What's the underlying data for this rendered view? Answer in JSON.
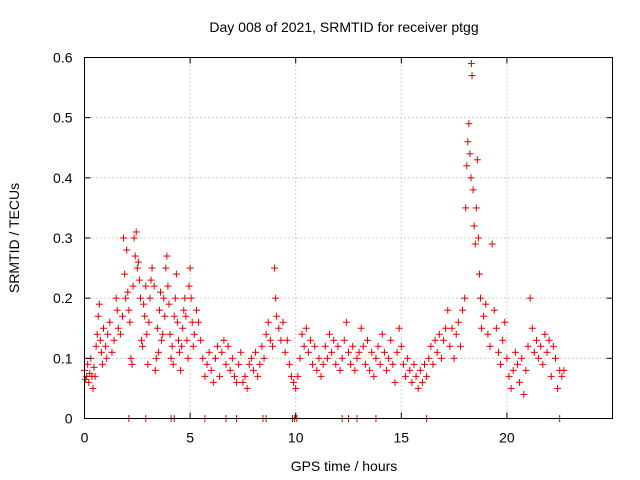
{
  "chart_data": {
    "type": "scatter",
    "title": "Day 008 of 2021, SRMTID for receiver ptgg",
    "xlabel": "GPS time / hours",
    "ylabel": "SRMTID / TECUs",
    "xlim": [
      0,
      25
    ],
    "ylim": [
      0,
      0.6
    ],
    "xticks": [
      "0",
      "5",
      "10",
      "15",
      "20"
    ],
    "yticks": [
      "0",
      "0.1",
      "0.2",
      "0.3",
      "0.4",
      "0.5",
      "0.6"
    ],
    "grid": true,
    "marker": "+",
    "color": "#e00000",
    "series": [
      {
        "name": "SRMTID",
        "points": [
          [
            0.0,
            0.08
          ],
          [
            0.05,
            0.065
          ],
          [
            0.1,
            0.07
          ],
          [
            0.15,
            0.09
          ],
          [
            0.2,
            0.06
          ],
          [
            0.25,
            0.075
          ],
          [
            0.3,
            0.1
          ],
          [
            0.35,
            0.07
          ],
          [
            0.4,
            0.05
          ],
          [
            0.45,
            0.085
          ],
          [
            0.5,
            0.07
          ],
          [
            0.55,
            0.12
          ],
          [
            0.6,
            0.14
          ],
          [
            0.65,
            0.17
          ],
          [
            0.7,
            0.19
          ],
          [
            0.75,
            0.13
          ],
          [
            0.8,
            0.11
          ],
          [
            0.85,
            0.09
          ],
          [
            0.9,
            0.15
          ],
          [
            1.0,
            0.12
          ],
          [
            1.05,
            0.1
          ],
          [
            1.1,
            0.14
          ],
          [
            1.2,
            0.16
          ],
          [
            1.3,
            0.11
          ],
          [
            1.4,
            0.13
          ],
          [
            1.5,
            0.2
          ],
          [
            1.55,
            0.18
          ],
          [
            1.6,
            0.15
          ],
          [
            1.7,
            0.14
          ],
          [
            1.8,
            0.17
          ],
          [
            1.85,
            0.3
          ],
          [
            1.9,
            0.24
          ],
          [
            1.95,
            0.2
          ],
          [
            2.0,
            0.28
          ],
          [
            2.05,
            0.21
          ],
          [
            2.1,
            0.18
          ],
          [
            2.15,
            0.16
          ],
          [
            2.2,
            0.1
          ],
          [
            2.25,
            0.09
          ],
          [
            2.3,
            0.22
          ],
          [
            2.35,
            0.3
          ],
          [
            2.4,
            0.27
          ],
          [
            2.45,
            0.31
          ],
          [
            2.5,
            0.25
          ],
          [
            2.55,
            0.26
          ],
          [
            2.6,
            0.23
          ],
          [
            2.65,
            0.2
          ],
          [
            2.7,
            0.13
          ],
          [
            2.75,
            0.12
          ],
          [
            2.8,
            0.19
          ],
          [
            2.85,
            0.17
          ],
          [
            2.9,
            0.22
          ],
          [
            2.95,
            0.14
          ],
          [
            3.0,
            0.09
          ],
          [
            3.05,
            0.16
          ],
          [
            3.1,
            0.2
          ],
          [
            3.15,
            0.23
          ],
          [
            3.2,
            0.25
          ],
          [
            3.3,
            0.22
          ],
          [
            3.35,
            0.08
          ],
          [
            3.4,
            0.1
          ],
          [
            3.45,
            0.15
          ],
          [
            3.5,
            0.11
          ],
          [
            3.55,
            0.18
          ],
          [
            3.6,
            0.21
          ],
          [
            3.65,
            0.13
          ],
          [
            3.7,
            0.14
          ],
          [
            3.75,
            0.2
          ],
          [
            3.8,
            0.17
          ],
          [
            3.85,
            0.25
          ],
          [
            3.9,
            0.27
          ],
          [
            3.95,
            0.22
          ],
          [
            4.0,
            0.19
          ],
          [
            4.05,
            0.14
          ],
          [
            4.1,
            0.1
          ],
          [
            4.15,
            0.12
          ],
          [
            4.2,
            0.09
          ],
          [
            4.25,
            0.17
          ],
          [
            4.3,
            0.2
          ],
          [
            4.35,
            0.24
          ],
          [
            4.4,
            0.16
          ],
          [
            4.45,
            0.13
          ],
          [
            4.5,
            0.11
          ],
          [
            4.55,
            0.08
          ],
          [
            4.6,
            0.12
          ],
          [
            4.65,
            0.15
          ],
          [
            4.7,
            0.18
          ],
          [
            4.75,
            0.2
          ],
          [
            4.8,
            0.17
          ],
          [
            4.85,
            0.13
          ],
          [
            4.9,
            0.1
          ],
          [
            4.95,
            0.22
          ],
          [
            5.0,
            0.25
          ],
          [
            5.05,
            0.2
          ],
          [
            5.1,
            0.16
          ],
          [
            5.15,
            0.12
          ],
          [
            5.2,
            0.14
          ],
          [
            5.3,
            0.18
          ],
          [
            5.4,
            0.16
          ],
          [
            5.5,
            0.13
          ],
          [
            5.6,
            0.1
          ],
          [
            5.7,
            0.07
          ],
          [
            5.8,
            0.09
          ],
          [
            5.9,
            0.11
          ],
          [
            6.0,
            0.08
          ],
          [
            6.1,
            0.06
          ],
          [
            6.2,
            0.1
          ],
          [
            6.3,
            0.12
          ],
          [
            6.4,
            0.07
          ],
          [
            6.5,
            0.11
          ],
          [
            6.6,
            0.13
          ],
          [
            6.7,
            0.09
          ],
          [
            6.8,
            0.12
          ],
          [
            6.9,
            0.08
          ],
          [
            7.0,
            0.1
          ],
          [
            7.1,
            0.07
          ],
          [
            7.2,
            0.06
          ],
          [
            7.3,
            0.09
          ],
          [
            7.4,
            0.11
          ],
          [
            7.5,
            0.06
          ],
          [
            7.6,
            0.07
          ],
          [
            7.7,
            0.05
          ],
          [
            7.8,
            0.09
          ],
          [
            7.9,
            0.1
          ],
          [
            8.0,
            0.08
          ],
          [
            8.1,
            0.11
          ],
          [
            8.2,
            0.07
          ],
          [
            8.3,
            0.09
          ],
          [
            8.4,
            0.12
          ],
          [
            8.5,
            0.1
          ],
          [
            8.6,
            0.14
          ],
          [
            8.7,
            0.16
          ],
          [
            8.8,
            0.13
          ],
          [
            8.9,
            0.12
          ],
          [
            9.0,
            0.25
          ],
          [
            9.05,
            0.2
          ],
          [
            9.1,
            0.17
          ],
          [
            9.2,
            0.15
          ],
          [
            9.3,
            0.13
          ],
          [
            9.4,
            0.16
          ],
          [
            9.5,
            0.11
          ],
          [
            9.6,
            0.13
          ],
          [
            9.7,
            0.09
          ],
          [
            9.8,
            0.07
          ],
          [
            9.9,
            0.06
          ],
          [
            10.0,
            0.05
          ],
          [
            10.1,
            0.07
          ],
          [
            10.2,
            0.1
          ],
          [
            10.3,
            0.14
          ],
          [
            10.4,
            0.12
          ],
          [
            10.5,
            0.15
          ],
          [
            10.6,
            0.11
          ],
          [
            10.7,
            0.13
          ],
          [
            10.8,
            0.09
          ],
          [
            10.9,
            0.12
          ],
          [
            11.0,
            0.08
          ],
          [
            11.1,
            0.1
          ],
          [
            11.2,
            0.07
          ],
          [
            11.3,
            0.09
          ],
          [
            11.4,
            0.12
          ],
          [
            11.5,
            0.1
          ],
          [
            11.6,
            0.14
          ],
          [
            11.7,
            0.11
          ],
          [
            11.8,
            0.13
          ],
          [
            11.9,
            0.09
          ],
          [
            12.0,
            0.12
          ],
          [
            12.1,
            0.08
          ],
          [
            12.2,
            0.1
          ],
          [
            12.3,
            0.13
          ],
          [
            12.4,
            0.16
          ],
          [
            12.5,
            0.11
          ],
          [
            12.6,
            0.09
          ],
          [
            12.7,
            0.12
          ],
          [
            12.8,
            0.08
          ],
          [
            12.9,
            0.1
          ],
          [
            13.0,
            0.11
          ],
          [
            13.1,
            0.15
          ],
          [
            13.2,
            0.12
          ],
          [
            13.3,
            0.09
          ],
          [
            13.4,
            0.13
          ],
          [
            13.5,
            0.08
          ],
          [
            13.6,
            0.11
          ],
          [
            13.7,
            0.07
          ],
          [
            13.8,
            0.1
          ],
          [
            13.9,
            0.12
          ],
          [
            14.0,
            0.09
          ],
          [
            14.1,
            0.14
          ],
          [
            14.2,
            0.11
          ],
          [
            14.3,
            0.08
          ],
          [
            14.4,
            0.1
          ],
          [
            14.5,
            0.13
          ],
          [
            14.6,
            0.09
          ],
          [
            14.7,
            0.06
          ],
          [
            14.8,
            0.11
          ],
          [
            14.9,
            0.15
          ],
          [
            15.0,
            0.12
          ],
          [
            15.1,
            0.09
          ],
          [
            15.2,
            0.07
          ],
          [
            15.3,
            0.1
          ],
          [
            15.4,
            0.08
          ],
          [
            15.5,
            0.06
          ],
          [
            15.6,
            0.09
          ],
          [
            15.7,
            0.07
          ],
          [
            15.8,
            0.05
          ],
          [
            15.9,
            0.08
          ],
          [
            16.0,
            0.06
          ],
          [
            16.1,
            0.09
          ],
          [
            16.2,
            0.07
          ],
          [
            16.3,
            0.1
          ],
          [
            16.4,
            0.12
          ],
          [
            16.5,
            0.09
          ],
          [
            16.6,
            0.13
          ],
          [
            16.7,
            0.11
          ],
          [
            16.8,
            0.14
          ],
          [
            16.9,
            0.1
          ],
          [
            17.0,
            0.13
          ],
          [
            17.1,
            0.15
          ],
          [
            17.2,
            0.18
          ],
          [
            17.3,
            0.12
          ],
          [
            17.4,
            0.15
          ],
          [
            17.5,
            0.1
          ],
          [
            17.6,
            0.14
          ],
          [
            17.7,
            0.16
          ],
          [
            17.8,
            0.12
          ],
          [
            17.9,
            0.18
          ],
          [
            18.0,
            0.2
          ],
          [
            18.05,
            0.35
          ],
          [
            18.1,
            0.42
          ],
          [
            18.15,
            0.46
          ],
          [
            18.2,
            0.49
          ],
          [
            18.25,
            0.44
          ],
          [
            18.3,
            0.4
          ],
          [
            18.32,
            0.59
          ],
          [
            18.35,
            0.57
          ],
          [
            18.4,
            0.38
          ],
          [
            18.45,
            0.32
          ],
          [
            18.5,
            0.29
          ],
          [
            18.55,
            0.35
          ],
          [
            18.6,
            0.43
          ],
          [
            18.65,
            0.3
          ],
          [
            18.7,
            0.24
          ],
          [
            18.75,
            0.2
          ],
          [
            18.8,
            0.15
          ],
          [
            18.9,
            0.17
          ],
          [
            19.0,
            0.19
          ],
          [
            19.1,
            0.14
          ],
          [
            19.2,
            0.12
          ],
          [
            19.3,
            0.29
          ],
          [
            19.4,
            0.18
          ],
          [
            19.5,
            0.15
          ],
          [
            19.6,
            0.11
          ],
          [
            19.7,
            0.09
          ],
          [
            19.8,
            0.13
          ],
          [
            19.9,
            0.16
          ],
          [
            20.0,
            0.1
          ],
          [
            20.1,
            0.07
          ],
          [
            20.2,
            0.05
          ],
          [
            20.3,
            0.08
          ],
          [
            20.4,
            0.11
          ],
          [
            20.5,
            0.09
          ],
          [
            20.6,
            0.06
          ],
          [
            20.7,
            0.1
          ],
          [
            20.8,
            0.04
          ],
          [
            20.9,
            0.08
          ],
          [
            21.0,
            0.12
          ],
          [
            21.1,
            0.2
          ],
          [
            21.2,
            0.15
          ],
          [
            21.3,
            0.11
          ],
          [
            21.4,
            0.13
          ],
          [
            21.5,
            0.1
          ],
          [
            21.6,
            0.12
          ],
          [
            21.7,
            0.09
          ],
          [
            21.8,
            0.14
          ],
          [
            21.9,
            0.11
          ],
          [
            22.0,
            0.13
          ],
          [
            22.1,
            0.07
          ],
          [
            22.2,
            0.12
          ],
          [
            22.3,
            0.1
          ],
          [
            22.4,
            0.05
          ],
          [
            22.5,
            0.08
          ],
          [
            22.6,
            0.07
          ],
          [
            22.7,
            0.08
          ],
          [
            2.1,
            0.0
          ],
          [
            2.9,
            0.0
          ],
          [
            4.1,
            0.0
          ],
          [
            4.25,
            0.0
          ],
          [
            5.7,
            0.0
          ],
          [
            6.7,
            0.0
          ],
          [
            7.2,
            0.0
          ],
          [
            8.45,
            0.0
          ],
          [
            8.6,
            0.0
          ],
          [
            9.85,
            0.0
          ],
          [
            9.95,
            0.0
          ],
          [
            10.05,
            0.0
          ],
          [
            12.2,
            0.0
          ],
          [
            12.5,
            0.0
          ],
          [
            12.9,
            0.0
          ],
          [
            13.8,
            0.0
          ],
          [
            16.2,
            0.0
          ],
          [
            22.5,
            0.0
          ]
        ]
      }
    ]
  }
}
